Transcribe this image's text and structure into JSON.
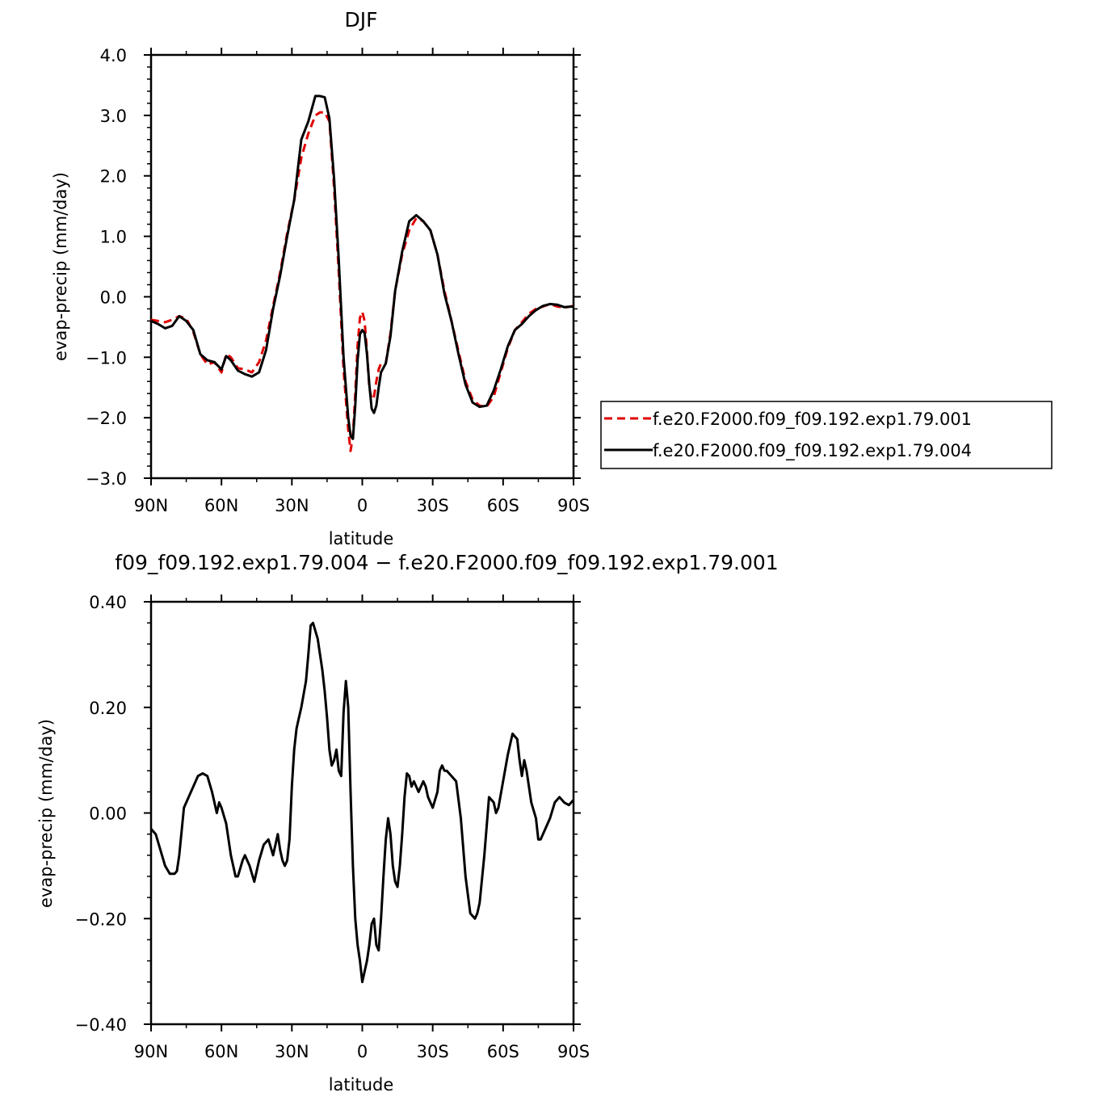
{
  "chart_data": [
    {
      "type": "line",
      "title": "DJF",
      "xlabel": "latitude",
      "ylabel": "evap-precip (mm/day)",
      "xlim": [
        90,
        -90
      ],
      "ylim": [
        -3.0,
        4.0
      ],
      "x_ticks": [
        90,
        60,
        30,
        0,
        -30,
        -60,
        -90
      ],
      "x_tick_labels": [
        "90N",
        "60N",
        "30N",
        "0",
        "30S",
        "60S",
        "90S"
      ],
      "y_ticks": [
        -3.0,
        -2.0,
        -1.0,
        0.0,
        1.0,
        2.0,
        3.0,
        4.0
      ],
      "y_tick_labels": [
        "−3.0",
        "−2.0",
        "−1.0",
        "0.0",
        "1.0",
        "2.0",
        "3.0",
        "4.0"
      ],
      "legend_position": "right",
      "series": [
        {
          "name": "f.e20.F2000.f09_f09.192.exp1.79.001",
          "color": "#e00000",
          "dash": "dashed",
          "x": [
            90,
            87,
            84,
            81,
            78,
            75,
            72,
            69,
            66,
            63,
            60,
            58,
            56,
            53,
            50,
            47,
            44,
            41,
            38,
            35,
            32,
            29,
            26,
            23,
            20,
            18,
            16,
            14,
            12,
            10,
            8,
            6,
            5,
            4,
            3,
            2,
            1,
            0,
            -1,
            -2,
            -3,
            -4,
            -5,
            -6,
            -7,
            -8,
            -10,
            -12,
            -14,
            -17,
            -20,
            -23,
            -26,
            -29,
            -32,
            -35,
            -38,
            -41,
            -44,
            -47,
            -50,
            -53,
            -56,
            -59,
            -62,
            -65,
            -68,
            -71,
            -74,
            -77,
            -80,
            -83,
            -86,
            -90
          ],
          "y": [
            -0.38,
            -0.4,
            -0.42,
            -0.38,
            -0.32,
            -0.36,
            -0.58,
            -0.95,
            -1.12,
            -1.08,
            -1.25,
            -0.95,
            -1.0,
            -1.18,
            -1.2,
            -1.25,
            -1.08,
            -0.72,
            -0.15,
            0.4,
            1.05,
            1.6,
            2.3,
            2.7,
            3.0,
            3.05,
            3.05,
            2.9,
            1.8,
            0.4,
            -1.2,
            -2.2,
            -2.55,
            -2.3,
            -1.6,
            -0.8,
            -0.35,
            -0.25,
            -0.4,
            -0.9,
            -1.5,
            -1.7,
            -1.65,
            -1.4,
            -1.2,
            -1.1,
            -1.1,
            -0.6,
            0.1,
            0.7,
            1.1,
            1.3,
            1.25,
            1.1,
            0.7,
            0.1,
            -0.4,
            -0.9,
            -1.4,
            -1.7,
            -1.8,
            -1.82,
            -1.65,
            -1.25,
            -0.85,
            -0.55,
            -0.42,
            -0.28,
            -0.2,
            -0.16,
            -0.12,
            -0.16,
            -0.18,
            -0.15
          ]
        },
        {
          "name": "f.e20.F2000.f09_f09.192.exp1.79.004",
          "color": "#000000",
          "dash": "solid",
          "x": [
            90,
            87,
            84,
            81,
            78,
            75,
            72,
            69,
            66,
            63,
            60,
            58,
            56,
            53,
            50,
            47,
            44,
            41,
            38,
            35,
            32,
            29,
            26,
            23,
            20,
            18,
            16,
            14,
            12,
            10,
            8,
            6,
            5,
            4,
            3,
            2,
            1,
            0,
            -1,
            -2,
            -3,
            -4,
            -5,
            -6,
            -7,
            -8,
            -10,
            -12,
            -14,
            -17,
            -20,
            -23,
            -26,
            -29,
            -32,
            -35,
            -38,
            -41,
            -44,
            -47,
            -50,
            -53,
            -56,
            -59,
            -62,
            -65,
            -68,
            -71,
            -74,
            -77,
            -80,
            -83,
            -86,
            -90
          ],
          "y": [
            -0.4,
            -0.45,
            -0.52,
            -0.48,
            -0.32,
            -0.4,
            -0.55,
            -0.95,
            -1.05,
            -1.08,
            -1.2,
            -0.98,
            -1.05,
            -1.22,
            -1.28,
            -1.32,
            -1.25,
            -0.88,
            -0.2,
            0.35,
            1.0,
            1.6,
            2.6,
            2.9,
            3.32,
            3.32,
            3.3,
            2.95,
            1.95,
            0.6,
            -1.0,
            -2.0,
            -2.3,
            -2.35,
            -1.8,
            -1.05,
            -0.62,
            -0.55,
            -0.6,
            -0.95,
            -1.45,
            -1.85,
            -1.92,
            -1.8,
            -1.5,
            -1.25,
            -1.1,
            -0.65,
            0.1,
            0.75,
            1.25,
            1.35,
            1.25,
            1.1,
            0.7,
            0.05,
            -0.4,
            -0.95,
            -1.45,
            -1.75,
            -1.82,
            -1.8,
            -1.55,
            -1.2,
            -0.82,
            -0.55,
            -0.45,
            -0.32,
            -0.22,
            -0.15,
            -0.12,
            -0.13,
            -0.17,
            -0.16
          ]
        }
      ]
    },
    {
      "type": "line",
      "title": "f09_f09.192.exp1.79.004 − f.e20.F2000.f09_f09.192.exp1.79.001",
      "xlabel": "latitude",
      "ylabel": "evap-precip (mm/day)",
      "xlim": [
        90,
        -90
      ],
      "ylim": [
        -0.4,
        0.4
      ],
      "x_ticks": [
        90,
        60,
        30,
        0,
        -30,
        -60,
        -90
      ],
      "x_tick_labels": [
        "90N",
        "60N",
        "30N",
        "0",
        "30S",
        "60S",
        "90S"
      ],
      "y_ticks": [
        -0.4,
        -0.2,
        0.0,
        0.2,
        0.4
      ],
      "y_tick_labels": [
        "−0.40",
        "−0.20",
        "0.00",
        "0.20",
        "0.40"
      ],
      "series": [
        {
          "color": "#000000",
          "dash": "solid",
          "x": [
            90,
            88,
            86,
            84,
            82,
            80,
            79,
            78,
            76,
            74,
            72,
            70,
            68,
            66,
            64,
            62,
            61,
            60,
            58,
            56,
            54,
            53,
            51,
            50,
            48,
            46,
            44,
            42,
            40,
            38,
            37,
            36,
            35,
            34,
            33,
            32,
            31,
            30,
            29,
            28,
            27,
            26,
            24,
            23,
            22,
            21,
            19,
            18,
            17,
            16,
            15,
            14,
            13,
            12,
            11,
            10,
            9,
            8,
            7,
            6,
            5,
            4,
            3,
            2,
            1,
            0,
            -1,
            -2,
            -3,
            -4,
            -5,
            -6,
            -7,
            -8,
            -9,
            -10,
            -11,
            -12,
            -13,
            -14,
            -15,
            -16,
            -17,
            -18,
            -19,
            -20,
            -21,
            -22,
            -23,
            -24,
            -25,
            -26,
            -27,
            -28,
            -30,
            -32,
            -33,
            -34,
            -35,
            -36,
            -37,
            -38,
            -40,
            -42,
            -44,
            -46,
            -48,
            -49,
            -50,
            -52,
            -54,
            -56,
            -57,
            -58,
            -60,
            -62,
            -64,
            -66,
            -67,
            -68,
            -69,
            -70,
            -72,
            -74,
            -75,
            -76,
            -78,
            -80,
            -82,
            -84,
            -86,
            -88,
            -90
          ],
          "y": [
            -0.03,
            -0.04,
            -0.07,
            -0.1,
            -0.115,
            -0.115,
            -0.11,
            -0.08,
            0.01,
            0.03,
            0.05,
            0.07,
            0.075,
            0.07,
            0.04,
            0.0,
            0.02,
            0.01,
            -0.02,
            -0.08,
            -0.12,
            -0.12,
            -0.09,
            -0.08,
            -0.1,
            -0.13,
            -0.09,
            -0.06,
            -0.05,
            -0.08,
            -0.06,
            -0.04,
            -0.07,
            -0.09,
            -0.1,
            -0.09,
            -0.05,
            0.05,
            0.12,
            0.16,
            0.18,
            0.2,
            0.25,
            0.3,
            0.355,
            0.36,
            0.33,
            0.3,
            0.27,
            0.23,
            0.18,
            0.12,
            0.09,
            0.1,
            0.12,
            0.08,
            0.07,
            0.19,
            0.25,
            0.2,
            0.04,
            -0.1,
            -0.2,
            -0.25,
            -0.28,
            -0.32,
            -0.3,
            -0.28,
            -0.25,
            -0.21,
            -0.2,
            -0.25,
            -0.26,
            -0.2,
            -0.12,
            -0.05,
            -0.01,
            -0.04,
            -0.1,
            -0.13,
            -0.14,
            -0.1,
            -0.04,
            0.03,
            0.075,
            0.07,
            0.05,
            0.06,
            0.05,
            0.04,
            0.05,
            0.06,
            0.05,
            0.03,
            0.01,
            0.04,
            0.08,
            0.09,
            0.08,
            0.08,
            0.075,
            0.07,
            0.06,
            -0.01,
            -0.12,
            -0.19,
            -0.2,
            -0.19,
            -0.17,
            -0.08,
            0.03,
            0.02,
            0.0,
            0.01,
            0.06,
            0.11,
            0.15,
            0.14,
            0.1,
            0.07,
            0.1,
            0.08,
            0.02,
            -0.01,
            -0.05,
            -0.05,
            -0.03,
            -0.01,
            0.02,
            0.03,
            0.02,
            0.015,
            0.025
          ]
        }
      ]
    }
  ]
}
